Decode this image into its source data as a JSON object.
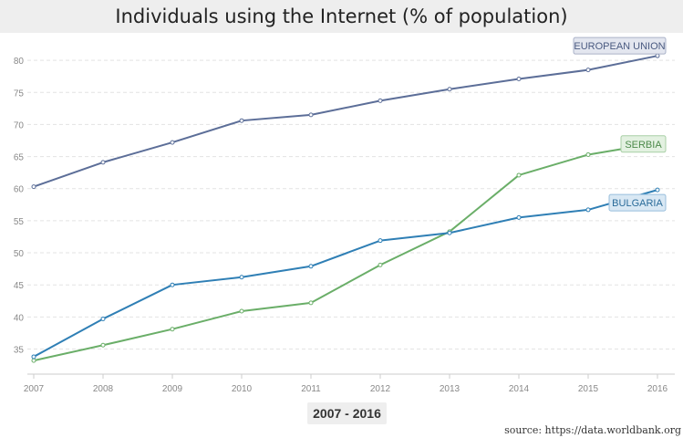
{
  "title": "Individuals using the Internet (% of population)",
  "period_label": "2007 - 2016",
  "source": "source: https://data.worldbank.org",
  "chart_data": {
    "type": "line",
    "title": "Individuals using the Internet (% of population)",
    "xlabel": "",
    "ylabel": "",
    "x": [
      "2007",
      "2008",
      "2009",
      "2010",
      "2011",
      "2012",
      "2013",
      "2014",
      "2015",
      "2016"
    ],
    "yticks": [
      35,
      40,
      45,
      50,
      55,
      60,
      65,
      70,
      75,
      80
    ],
    "ylim": [
      31.8,
      83
    ],
    "grid": true,
    "legend": "labels at line ends",
    "series": [
      {
        "name": "EUROPEAN UNION",
        "color": "#5c6e98",
        "label_bg": "#e3e6ef",
        "label_border": "#aab2c8",
        "label_color": "#4a5a80",
        "values": [
          60.3,
          64.1,
          67.2,
          70.6,
          71.5,
          73.7,
          75.5,
          77.1,
          78.5,
          80.7
        ]
      },
      {
        "name": "SERBIA",
        "color": "#6aae68",
        "label_bg": "#e3f1e1",
        "label_border": "#a8cfa5",
        "label_color": "#4c8a4a",
        "values": [
          33.2,
          35.6,
          38.1,
          40.9,
          42.2,
          48.1,
          53.3,
          62.1,
          65.3,
          67.1
        ]
      },
      {
        "name": "BULGARIA",
        "color": "#2f7fb5",
        "label_bg": "#d9e8f4",
        "label_border": "#98bedc",
        "label_color": "#2a6b99",
        "values": [
          33.8,
          39.7,
          45.0,
          46.2,
          47.9,
          51.9,
          53.1,
          55.5,
          56.7,
          59.8
        ]
      }
    ]
  }
}
